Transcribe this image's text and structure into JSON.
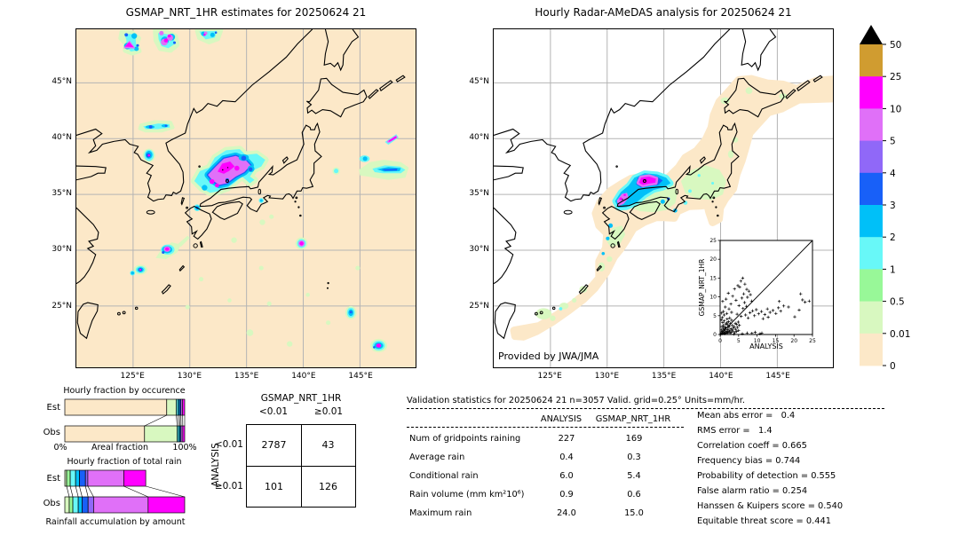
{
  "chart_data": {
    "colorbar": {
      "labels": [
        "50",
        "25",
        "10",
        "5",
        "4",
        "3",
        "2",
        "1",
        "0.5",
        "0.01",
        "0"
      ],
      "colors": [
        "#D09C30",
        "#FF00FF",
        "#E070F8",
        "#9068F8",
        "#1860F8",
        "#00C0F8",
        "#68F8F8",
        "#98F898",
        "#D8F8C0",
        "#FCE8C8"
      ],
      "overflow_color": "#000000"
    },
    "left_map": {
      "type": "map",
      "title": "GSMAP_NRT_1HR estimates for 20250624 21",
      "x_ticks": [
        "125°E",
        "130°E",
        "135°E",
        "140°E",
        "145°E"
      ],
      "y_ticks": [
        "45°N",
        "40°N",
        "35°N",
        "30°N",
        "25°N"
      ]
    },
    "right_map": {
      "type": "map",
      "title": "Hourly Radar-AMeDAS analysis for 20250624 21",
      "x_ticks": [
        "125°E",
        "130°E",
        "135°E",
        "140°E",
        "145°E"
      ],
      "y_ticks": [
        "45°N",
        "40°N",
        "35°N",
        "30°N",
        "25°N"
      ],
      "credit": "Provided by JWA/JMA"
    },
    "occurrence": {
      "type": "bar",
      "title": "Hourly fraction by occurence",
      "x_min_label": "0%",
      "xlabel": "Areal fraction",
      "x_max_label": "100%",
      "row_labels": [
        "Est",
        "Obs"
      ],
      "series": [
        {
          "name": "Est",
          "segments": [
            {
              "c": 9,
              "f": 0.85
            },
            {
              "c": 8,
              "f": 0.08
            },
            {
              "c": 6,
              "f": 0.014
            },
            {
              "c": 5,
              "f": 0.013
            },
            {
              "c": 4,
              "f": 0.012
            },
            {
              "c": 2,
              "f": 0.014
            },
            {
              "c": 1,
              "f": 0.017
            }
          ]
        },
        {
          "name": "Obs",
          "segments": [
            {
              "c": 9,
              "f": 0.665
            },
            {
              "c": 8,
              "f": 0.272
            },
            {
              "c": 6,
              "f": 0.013
            },
            {
              "c": 5,
              "f": 0.012
            },
            {
              "c": 4,
              "f": 0.008
            },
            {
              "c": 2,
              "f": 0.014
            },
            {
              "c": 1,
              "f": 0.016
            }
          ]
        }
      ]
    },
    "total_rain": {
      "type": "bar",
      "title": "Hourly fraction of total rain",
      "xlabel": "Rainfall accumulation by amount",
      "row_labels": [
        "Est",
        "Obs"
      ],
      "series": [
        {
          "name": "Est",
          "segments": [
            {
              "c": 8,
              "f": 0.015
            },
            {
              "c": 7,
              "f": 0.03
            },
            {
              "c": 6,
              "f": 0.045
            },
            {
              "c": 5,
              "f": 0.032
            },
            {
              "c": 4,
              "f": 0.05
            },
            {
              "c": 3,
              "f": 0.02
            },
            {
              "c": 2,
              "f": 0.3
            },
            {
              "c": 1,
              "f": 0.183
            }
          ]
        },
        {
          "name": "Obs",
          "segments": [
            {
              "c": 8,
              "f": 0.037
            },
            {
              "c": 7,
              "f": 0.03
            },
            {
              "c": 6,
              "f": 0.045
            },
            {
              "c": 5,
              "f": 0.032
            },
            {
              "c": 4,
              "f": 0.05
            },
            {
              "c": 3,
              "f": 0.046
            },
            {
              "c": 2,
              "f": 0.455
            },
            {
              "c": 1,
              "f": 0.305
            }
          ]
        }
      ]
    },
    "contingency": {
      "type": "table",
      "col_group": "GSMAP_NRT_1HR",
      "row_group": "ANALYSIS",
      "col_labels": [
        "<0.01",
        "≥0.01"
      ],
      "row_labels": [
        "<0.01",
        "≥0.01"
      ],
      "values": [
        [
          "2787",
          "43"
        ],
        [
          "101",
          "126"
        ]
      ]
    },
    "validation": {
      "type": "table",
      "title": "Validation statistics for 20250624 21  n=3057 Valid. grid=0.25° Units=mm/hr.",
      "columns": [
        "ANALYSIS",
        "GSMAP_NRT_1HR"
      ],
      "rows": [
        {
          "label": "Num of gridpoints raining",
          "values": [
            "227",
            "169"
          ]
        },
        {
          "label": "Average rain",
          "values": [
            "0.4",
            "0.3"
          ]
        },
        {
          "label": "Conditional rain",
          "values": [
            "6.0",
            "5.4"
          ]
        },
        {
          "label": "Rain volume (mm km²10⁶)",
          "values": [
            "0.9",
            "0.6"
          ]
        },
        {
          "label": "Maximum rain",
          "values": [
            "24.0",
            "15.0"
          ]
        }
      ]
    },
    "scores": {
      "type": "list",
      "items": [
        {
          "label": "Mean abs error =",
          "value": "0.4"
        },
        {
          "label": "RMS error =",
          "value": "1.4"
        },
        {
          "label": "Correlation coeff =",
          "value": "0.665"
        },
        {
          "label": "Frequency bias =",
          "value": "0.744"
        },
        {
          "label": "Probability of detection =",
          "value": "0.555"
        },
        {
          "label": "False alarm ratio =",
          "value": "0.254"
        },
        {
          "label": "Hanssen & Kuipers score =",
          "value": "0.540"
        },
        {
          "label": "Equitable threat score =",
          "value": "0.441"
        }
      ]
    },
    "scatter": {
      "type": "scatter",
      "xlabel": "ANALYSIS",
      "ylabel": "GSMAP_NRT_1HR",
      "xlim": [
        0,
        25
      ],
      "ylim": [
        0,
        25
      ],
      "x_tick_labels": [
        "0",
        "5",
        "10",
        "15",
        "20",
        "25"
      ],
      "y_tick_labels": [
        "0",
        "5",
        "10",
        "15",
        "20",
        "25"
      ],
      "points": [
        [
          0.2,
          0.1
        ],
        [
          0.3,
          0.5
        ],
        [
          0.4,
          1.2
        ],
        [
          0.5,
          0.2
        ],
        [
          0.5,
          2.1
        ],
        [
          0.6,
          0.8
        ],
        [
          0.7,
          3.2
        ],
        [
          0.8,
          0.3
        ],
        [
          0.8,
          1.6
        ],
        [
          0.9,
          2.4
        ],
        [
          1,
          0.5
        ],
        [
          1,
          1.1
        ],
        [
          1.1,
          3.6
        ],
        [
          1.2,
          0.2
        ],
        [
          1.2,
          2
        ],
        [
          1.3,
          1.4
        ],
        [
          1.4,
          0.7
        ],
        [
          1.5,
          2.8
        ],
        [
          1.5,
          0.3
        ],
        [
          1.6,
          1.8
        ],
        [
          1.7,
          0.9
        ],
        [
          1.8,
          3.1
        ],
        [
          1.9,
          0.4
        ],
        [
          2,
          1.3
        ],
        [
          2,
          2.6
        ],
        [
          2.1,
          0.6
        ],
        [
          2.2,
          1.9
        ],
        [
          2.3,
          3.4
        ],
        [
          2.4,
          0.8
        ],
        [
          2.5,
          2.2
        ],
        [
          2.6,
          1
        ],
        [
          2.7,
          0.3
        ],
        [
          2.8,
          2.9
        ],
        [
          2.9,
          1.5
        ],
        [
          3,
          0.6
        ],
        [
          3.1,
          3.8
        ],
        [
          3.2,
          1.2
        ],
        [
          3.3,
          2.4
        ],
        [
          3.5,
          0.9
        ],
        [
          3.6,
          1.7
        ],
        [
          3.8,
          2.1
        ],
        [
          4,
          0.5
        ],
        [
          4.1,
          3
        ],
        [
          4.2,
          1.4
        ],
        [
          4.4,
          2.7
        ],
        [
          4.5,
          0.8
        ],
        [
          4.7,
          1.9
        ],
        [
          4.9,
          3.3
        ],
        [
          5,
          1.1
        ],
        [
          5.2,
          2.5
        ],
        [
          0.3,
          3.9
        ],
        [
          0.6,
          4.5
        ],
        [
          1.1,
          5.2
        ],
        [
          0.9,
          6.1
        ],
        [
          1.8,
          5.6
        ],
        [
          2.4,
          6.8
        ],
        [
          3.1,
          5.9
        ],
        [
          1.4,
          7.3
        ],
        [
          2.9,
          8.1
        ],
        [
          0.7,
          8.8
        ],
        [
          1.6,
          9.4
        ],
        [
          3.4,
          10.2
        ],
        [
          2.2,
          11
        ],
        [
          4.3,
          9.1
        ],
        [
          3.9,
          12.1
        ],
        [
          4.8,
          13
        ],
        [
          5.6,
          14.2
        ],
        [
          6.1,
          15
        ],
        [
          5.3,
          12.6
        ],
        [
          6.7,
          13.4
        ],
        [
          7.2,
          12
        ],
        [
          6.4,
          10.8
        ],
        [
          7.8,
          11.5
        ],
        [
          5.9,
          9.7
        ],
        [
          6.6,
          8.5
        ],
        [
          7.4,
          9.9
        ],
        [
          8.2,
          10.6
        ],
        [
          5.1,
          7.7
        ],
        [
          6.2,
          6.9
        ],
        [
          7.1,
          7.5
        ],
        [
          8.5,
          8.9
        ],
        [
          4.6,
          5.4
        ],
        [
          5.7,
          4.8
        ],
        [
          6.9,
          5.2
        ],
        [
          7.6,
          4.4
        ],
        [
          8.1,
          5.8
        ],
        [
          8.8,
          6.3
        ],
        [
          9.3,
          5
        ],
        [
          9.8,
          6.6
        ],
        [
          10.4,
          5.5
        ],
        [
          11.2,
          6.1
        ],
        [
          12.1,
          5.3
        ],
        [
          12.8,
          6.8
        ],
        [
          13.5,
          5.9
        ],
        [
          14.3,
          6.4
        ],
        [
          15.1,
          5.6
        ],
        [
          15.8,
          7.1
        ],
        [
          16.4,
          6.2
        ],
        [
          17.2,
          7.6
        ],
        [
          11.6,
          4.2
        ],
        [
          13,
          4.6
        ],
        [
          16,
          8.8
        ],
        [
          18.5,
          7.3
        ],
        [
          20.2,
          4.7
        ],
        [
          21.4,
          6.5
        ],
        [
          22.3,
          9.2
        ],
        [
          21.8,
          10.8
        ],
        [
          23,
          8.6
        ],
        [
          24.1,
          8.9
        ],
        [
          6,
          0.2
        ],
        [
          7.3,
          0.4
        ],
        [
          8.6,
          0.3
        ],
        [
          9.5,
          0.6
        ],
        [
          10.8,
          0.2
        ],
        [
          11.3,
          0.4
        ],
        [
          3.7,
          0.1
        ],
        [
          2.6,
          4.4
        ],
        [
          1.9,
          4.1
        ],
        [
          0.4,
          5.7
        ]
      ]
    }
  }
}
